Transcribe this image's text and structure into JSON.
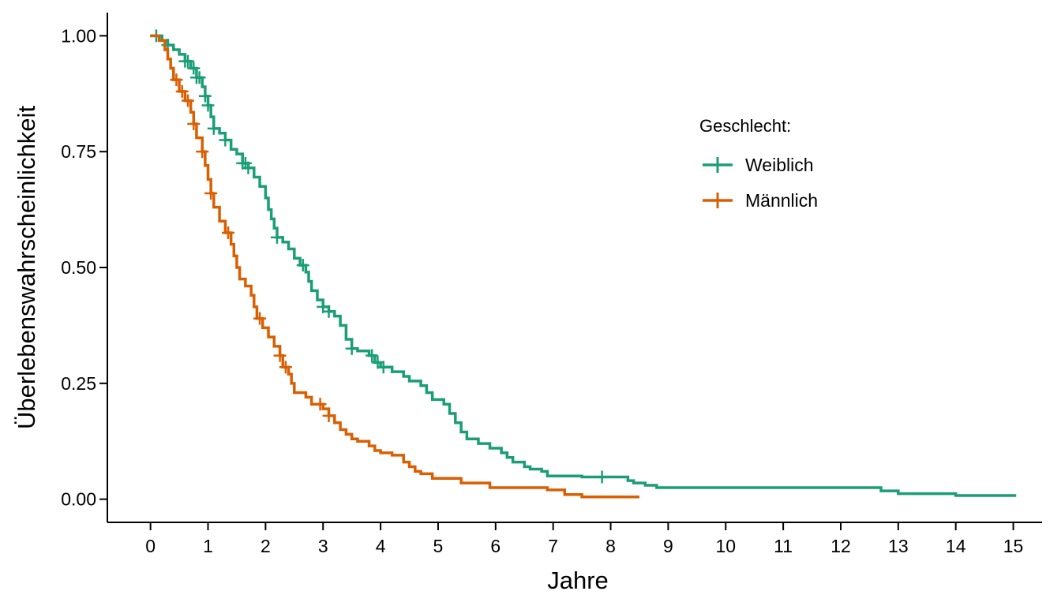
{
  "chart_data": {
    "type": "line",
    "subtype": "kaplan-meier-survival",
    "xlabel": "Jahre",
    "ylabel": "Überlebenswahrscheinlichkeit",
    "xlim": [
      -0.75,
      15.5
    ],
    "ylim": [
      -0.05,
      1.05
    ],
    "x_ticks": [
      0,
      1,
      2,
      3,
      4,
      5,
      6,
      7,
      8,
      9,
      10,
      11,
      12,
      13,
      14,
      15
    ],
    "x_tick_labels": [
      "0",
      "1",
      "2",
      "3",
      "4",
      "5",
      "6",
      "7",
      "8",
      "9",
      "10",
      "11",
      "12",
      "13",
      "14",
      "15"
    ],
    "y_ticks": [
      0,
      0.25,
      0.5,
      0.75,
      1
    ],
    "y_tick_labels": [
      "0.00",
      "0.25",
      "0.50",
      "0.75",
      "1.00"
    ],
    "grid": false,
    "legend": {
      "title": "Geschlecht:",
      "position": "top-right",
      "entries": [
        "Weiblich",
        "Männlich"
      ]
    },
    "series": [
      {
        "name": "Weiblich",
        "color": "#1b9e77",
        "points": [
          [
            0.0,
            1.0
          ],
          [
            0.2,
            0.99
          ],
          [
            0.3,
            0.98
          ],
          [
            0.4,
            0.97
          ],
          [
            0.5,
            0.96
          ],
          [
            0.6,
            0.945
          ],
          [
            0.7,
            0.93
          ],
          [
            0.8,
            0.91
          ],
          [
            0.9,
            0.89
          ],
          [
            0.95,
            0.87
          ],
          [
            1.0,
            0.85
          ],
          [
            1.05,
            0.825
          ],
          [
            1.1,
            0.8
          ],
          [
            1.2,
            0.79
          ],
          [
            1.3,
            0.775
          ],
          [
            1.4,
            0.755
          ],
          [
            1.5,
            0.745
          ],
          [
            1.6,
            0.725
          ],
          [
            1.7,
            0.715
          ],
          [
            1.8,
            0.695
          ],
          [
            1.9,
            0.675
          ],
          [
            2.0,
            0.65
          ],
          [
            2.05,
            0.625
          ],
          [
            2.1,
            0.605
          ],
          [
            2.15,
            0.585
          ],
          [
            2.2,
            0.565
          ],
          [
            2.3,
            0.555
          ],
          [
            2.4,
            0.54
          ],
          [
            2.5,
            0.52
          ],
          [
            2.6,
            0.505
          ],
          [
            2.7,
            0.49
          ],
          [
            2.75,
            0.47
          ],
          [
            2.8,
            0.45
          ],
          [
            2.9,
            0.43
          ],
          [
            3.0,
            0.415
          ],
          [
            3.1,
            0.405
          ],
          [
            3.2,
            0.395
          ],
          [
            3.3,
            0.375
          ],
          [
            3.4,
            0.345
          ],
          [
            3.5,
            0.325
          ],
          [
            3.6,
            0.32
          ],
          [
            3.8,
            0.31
          ],
          [
            3.9,
            0.295
          ],
          [
            4.0,
            0.285
          ],
          [
            4.2,
            0.275
          ],
          [
            4.4,
            0.265
          ],
          [
            4.5,
            0.255
          ],
          [
            4.7,
            0.245
          ],
          [
            4.8,
            0.23
          ],
          [
            4.9,
            0.215
          ],
          [
            5.1,
            0.205
          ],
          [
            5.2,
            0.185
          ],
          [
            5.3,
            0.165
          ],
          [
            5.4,
            0.145
          ],
          [
            5.5,
            0.13
          ],
          [
            5.7,
            0.12
          ],
          [
            5.9,
            0.11
          ],
          [
            6.1,
            0.1
          ],
          [
            6.2,
            0.09
          ],
          [
            6.3,
            0.08
          ],
          [
            6.5,
            0.07
          ],
          [
            6.6,
            0.065
          ],
          [
            6.8,
            0.06
          ],
          [
            6.9,
            0.05
          ],
          [
            7.5,
            0.048
          ],
          [
            8.3,
            0.04
          ],
          [
            8.4,
            0.035
          ],
          [
            8.6,
            0.03
          ],
          [
            8.8,
            0.025
          ],
          [
            12.7,
            0.018
          ],
          [
            13.0,
            0.012
          ],
          [
            14.0,
            0.008
          ],
          [
            15.05,
            0.008
          ]
        ],
        "censor_x": [
          0.1,
          0.3,
          0.6,
          0.65,
          0.75,
          0.8,
          0.85,
          0.95,
          1.0,
          1.1,
          1.3,
          1.6,
          1.65,
          1.7,
          2.2,
          2.65,
          3.0,
          3.1,
          3.5,
          3.85,
          3.95,
          4.05,
          7.85
        ]
      },
      {
        "name": "Männlich",
        "color": "#d95f02",
        "points": [
          [
            0.0,
            1.0
          ],
          [
            0.15,
            0.99
          ],
          [
            0.25,
            0.97
          ],
          [
            0.3,
            0.95
          ],
          [
            0.35,
            0.93
          ],
          [
            0.4,
            0.905
          ],
          [
            0.5,
            0.88
          ],
          [
            0.6,
            0.86
          ],
          [
            0.7,
            0.835
          ],
          [
            0.75,
            0.81
          ],
          [
            0.8,
            0.78
          ],
          [
            0.9,
            0.75
          ],
          [
            0.95,
            0.72
          ],
          [
            1.0,
            0.69
          ],
          [
            1.05,
            0.66
          ],
          [
            1.1,
            0.63
          ],
          [
            1.2,
            0.6
          ],
          [
            1.3,
            0.575
          ],
          [
            1.4,
            0.55
          ],
          [
            1.45,
            0.525
          ],
          [
            1.5,
            0.5
          ],
          [
            1.55,
            0.475
          ],
          [
            1.65,
            0.46
          ],
          [
            1.75,
            0.44
          ],
          [
            1.8,
            0.415
          ],
          [
            1.85,
            0.39
          ],
          [
            1.95,
            0.37
          ],
          [
            2.05,
            0.35
          ],
          [
            2.15,
            0.33
          ],
          [
            2.25,
            0.31
          ],
          [
            2.3,
            0.285
          ],
          [
            2.4,
            0.27
          ],
          [
            2.45,
            0.25
          ],
          [
            2.5,
            0.23
          ],
          [
            2.7,
            0.22
          ],
          [
            2.8,
            0.205
          ],
          [
            3.0,
            0.195
          ],
          [
            3.1,
            0.18
          ],
          [
            3.2,
            0.165
          ],
          [
            3.3,
            0.15
          ],
          [
            3.4,
            0.14
          ],
          [
            3.5,
            0.13
          ],
          [
            3.6,
            0.125
          ],
          [
            3.8,
            0.115
          ],
          [
            3.9,
            0.105
          ],
          [
            4.0,
            0.1
          ],
          [
            4.2,
            0.095
          ],
          [
            4.4,
            0.08
          ],
          [
            4.5,
            0.07
          ],
          [
            4.6,
            0.06
          ],
          [
            4.7,
            0.055
          ],
          [
            4.9,
            0.045
          ],
          [
            5.4,
            0.035
          ],
          [
            5.9,
            0.025
          ],
          [
            6.9,
            0.02
          ],
          [
            7.2,
            0.01
          ],
          [
            7.5,
            0.005
          ],
          [
            8.5,
            0.005
          ]
        ],
        "censor_x": [
          0.45,
          0.55,
          0.65,
          0.75,
          0.9,
          1.05,
          1.35,
          1.9,
          2.25,
          2.35,
          2.95,
          3.1
        ]
      }
    ]
  }
}
